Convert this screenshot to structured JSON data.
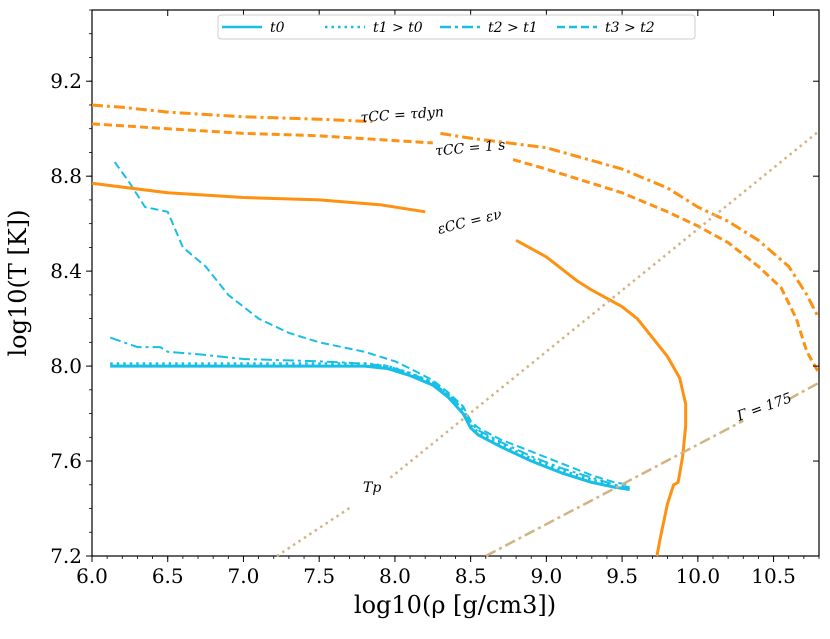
{
  "chart_data": {
    "type": "line",
    "title": "",
    "xlabel": "log10(ρ [g/cm3])",
    "ylabel": "log10(T [K])",
    "xlim": [
      6.0,
      10.8
    ],
    "ylim": [
      7.2,
      9.5
    ],
    "x_ticks": [
      6.0,
      6.5,
      7.0,
      7.5,
      8.0,
      8.5,
      9.0,
      9.5,
      10.0,
      10.5
    ],
    "x_tick_labels": [
      "6.0",
      "6.5",
      "7.0",
      "7.5",
      "8.0",
      "8.5",
      "9.0",
      "9.5",
      "10.0",
      "10.5"
    ],
    "y_ticks": [
      7.2,
      7.6,
      8.0,
      8.4,
      8.8,
      9.2
    ],
    "y_tick_labels": [
      "7.2",
      "7.6",
      "8.0",
      "8.4",
      "8.8",
      "9.2"
    ],
    "legend": {
      "placement": "top-center",
      "entries": [
        {
          "label": "t0",
          "style": "solid"
        },
        {
          "label": "t1 > t0",
          "style": "dotted"
        },
        {
          "label": "t2 > t1",
          "style": "dashdot"
        },
        {
          "label": "t3 > t2",
          "style": "dashed"
        }
      ]
    },
    "series": [
      {
        "name": "t0",
        "style": "solid",
        "color": "#17bfe6",
        "width": 3,
        "points": [
          [
            6.12,
            8.0
          ],
          [
            6.5,
            8.0
          ],
          [
            7.0,
            8.0
          ],
          [
            7.5,
            8.0
          ],
          [
            7.8,
            8.0
          ],
          [
            7.95,
            7.99
          ],
          [
            8.1,
            7.96
          ],
          [
            8.25,
            7.92
          ],
          [
            8.35,
            7.87
          ],
          [
            8.45,
            7.8
          ],
          [
            8.5,
            7.74
          ],
          [
            8.55,
            7.71
          ],
          [
            8.7,
            7.66
          ],
          [
            8.9,
            7.6
          ],
          [
            9.1,
            7.55
          ],
          [
            9.3,
            7.51
          ],
          [
            9.45,
            7.49
          ],
          [
            9.55,
            7.48
          ]
        ]
      },
      {
        "name": "t1 > t0",
        "style": "dotted",
        "color": "#17bfe6",
        "width": 3,
        "points": [
          [
            6.12,
            8.01
          ],
          [
            6.5,
            8.01
          ],
          [
            7.0,
            8.01
          ],
          [
            7.5,
            8.01
          ],
          [
            7.8,
            8.01
          ],
          [
            7.95,
            8.0
          ],
          [
            8.1,
            7.97
          ],
          [
            8.25,
            7.93
          ],
          [
            8.35,
            7.88
          ],
          [
            8.45,
            7.81
          ],
          [
            8.5,
            7.75
          ],
          [
            8.55,
            7.72
          ],
          [
            8.7,
            7.67
          ],
          [
            8.9,
            7.61
          ],
          [
            9.1,
            7.56
          ],
          [
            9.3,
            7.52
          ],
          [
            9.45,
            7.49
          ],
          [
            9.55,
            7.48
          ]
        ]
      },
      {
        "name": "t2 > t1",
        "style": "dashdot",
        "color": "#17bfe6",
        "width": 2,
        "points": [
          [
            6.12,
            8.12
          ],
          [
            6.3,
            8.08
          ],
          [
            6.45,
            8.08
          ],
          [
            6.5,
            8.06
          ],
          [
            6.7,
            8.05
          ],
          [
            7.0,
            8.03
          ],
          [
            7.5,
            8.02
          ],
          [
            7.8,
            8.01
          ],
          [
            7.95,
            8.0
          ],
          [
            8.1,
            7.97
          ],
          [
            8.25,
            7.93
          ],
          [
            8.35,
            7.88
          ],
          [
            8.45,
            7.82
          ],
          [
            8.5,
            7.76
          ],
          [
            8.55,
            7.73
          ],
          [
            8.7,
            7.68
          ],
          [
            8.9,
            7.62
          ],
          [
            9.1,
            7.57
          ],
          [
            9.3,
            7.53
          ],
          [
            9.45,
            7.5
          ],
          [
            9.55,
            7.49
          ]
        ]
      },
      {
        "name": "t3 > t2",
        "style": "dashed",
        "color": "#17bfe6",
        "width": 2,
        "points": [
          [
            6.15,
            8.86
          ],
          [
            6.25,
            8.77
          ],
          [
            6.35,
            8.67
          ],
          [
            6.5,
            8.65
          ],
          [
            6.6,
            8.5
          ],
          [
            6.75,
            8.42
          ],
          [
            6.9,
            8.3
          ],
          [
            7.1,
            8.2
          ],
          [
            7.3,
            8.14
          ],
          [
            7.5,
            8.1
          ],
          [
            7.8,
            8.06
          ],
          [
            8.0,
            8.02
          ],
          [
            8.1,
            7.99
          ],
          [
            8.25,
            7.94
          ],
          [
            8.35,
            7.89
          ],
          [
            8.45,
            7.83
          ],
          [
            8.5,
            7.77
          ],
          [
            8.55,
            7.74
          ],
          [
            8.7,
            7.69
          ],
          [
            8.9,
            7.64
          ],
          [
            9.1,
            7.59
          ],
          [
            9.3,
            7.54
          ],
          [
            9.45,
            7.51
          ],
          [
            9.55,
            7.5
          ]
        ]
      },
      {
        "name": "ε_CC = ε_ν",
        "style": "solid",
        "color": "#ff9112",
        "width": 3,
        "segments": [
          [
            [
              6.0,
              8.77
            ],
            [
              6.5,
              8.73
            ],
            [
              7.0,
              8.71
            ],
            [
              7.5,
              8.7
            ],
            [
              7.9,
              8.68
            ],
            [
              8.2,
              8.65
            ]
          ],
          [
            [
              8.8,
              8.53
            ],
            [
              9.0,
              8.46
            ],
            [
              9.2,
              8.36
            ],
            [
              9.3,
              8.32
            ],
            [
              9.5,
              8.25
            ],
            [
              9.6,
              8.2
            ],
            [
              9.7,
              8.12
            ],
            [
              9.8,
              8.04
            ],
            [
              9.88,
              7.95
            ],
            [
              9.92,
              7.84
            ],
            [
              9.92,
              7.75
            ],
            [
              9.9,
              7.62
            ],
            [
              9.87,
              7.51
            ],
            [
              9.84,
              7.5
            ],
            [
              9.8,
              7.42
            ],
            [
              9.75,
              7.27
            ],
            [
              9.73,
              7.2
            ]
          ]
        ]
      },
      {
        "name": "τ_CC = 1 s",
        "style": "dashed",
        "color": "#ff9112",
        "width": 3,
        "segments": [
          [
            [
              6.0,
              9.02
            ],
            [
              6.5,
              9.0
            ],
            [
              7.0,
              8.98
            ],
            [
              7.5,
              8.97
            ],
            [
              8.0,
              8.95
            ],
            [
              8.25,
              8.94
            ]
          ],
          [
            [
              8.78,
              8.87
            ],
            [
              9.0,
              8.83
            ],
            [
              9.5,
              8.73
            ],
            [
              9.8,
              8.65
            ],
            [
              10.0,
              8.59
            ],
            [
              10.2,
              8.52
            ],
            [
              10.4,
              8.42
            ],
            [
              10.55,
              8.33
            ],
            [
              10.65,
              8.2
            ],
            [
              10.72,
              8.06
            ],
            [
              10.8,
              7.97
            ]
          ]
        ]
      },
      {
        "name": "τ_CC = τ_dyn",
        "style": "dashdot",
        "color": "#ff9112",
        "width": 3,
        "segments": [
          [
            [
              6.0,
              9.1
            ],
            [
              6.2,
              9.09
            ],
            [
              6.5,
              9.07
            ],
            [
              7.0,
              9.05
            ],
            [
              7.5,
              9.04
            ],
            [
              7.85,
              9.03
            ]
          ],
          [
            [
              8.3,
              8.98
            ],
            [
              8.5,
              8.96
            ],
            [
              9.0,
              8.92
            ],
            [
              9.5,
              8.83
            ],
            [
              9.8,
              8.75
            ],
            [
              10.0,
              8.67
            ],
            [
              10.2,
              8.61
            ],
            [
              10.4,
              8.53
            ],
            [
              10.6,
              8.42
            ],
            [
              10.72,
              8.3
            ],
            [
              10.8,
              8.2
            ]
          ]
        ]
      },
      {
        "name": "T_p",
        "style": "dotted",
        "color": "#d2b482",
        "width": 2.5,
        "segments": [
          [
            [
              7.22,
              7.2
            ],
            [
              7.72,
              7.41
            ]
          ],
          [
            [
              7.97,
              7.53
            ],
            [
              10.8,
              8.99
            ]
          ]
        ]
      },
      {
        "name": "Γ = 175",
        "style": "dashdot",
        "color": "#d2b482",
        "width": 2.5,
        "segments": [
          [
            [
              8.6,
              7.2
            ],
            [
              10.3,
              7.77
            ]
          ],
          [
            [
              10.6,
              7.86
            ],
            [
              10.8,
              7.93
            ]
          ]
        ]
      }
    ],
    "annotations": [
      {
        "text": "τCC = τdyn",
        "x": 8.05,
        "y": 9.04,
        "angle": -4
      },
      {
        "text": "τCC = 1 s",
        "x": 8.5,
        "y": 8.9,
        "angle": -5
      },
      {
        "text": "εCC = εν",
        "x": 8.5,
        "y": 8.59,
        "angle": -14
      },
      {
        "text": "Γ = 175",
        "x": 10.45,
        "y": 7.81,
        "angle": -20
      },
      {
        "text": "Tp",
        "x": 7.85,
        "y": 7.47,
        "angle": 0
      }
    ]
  }
}
